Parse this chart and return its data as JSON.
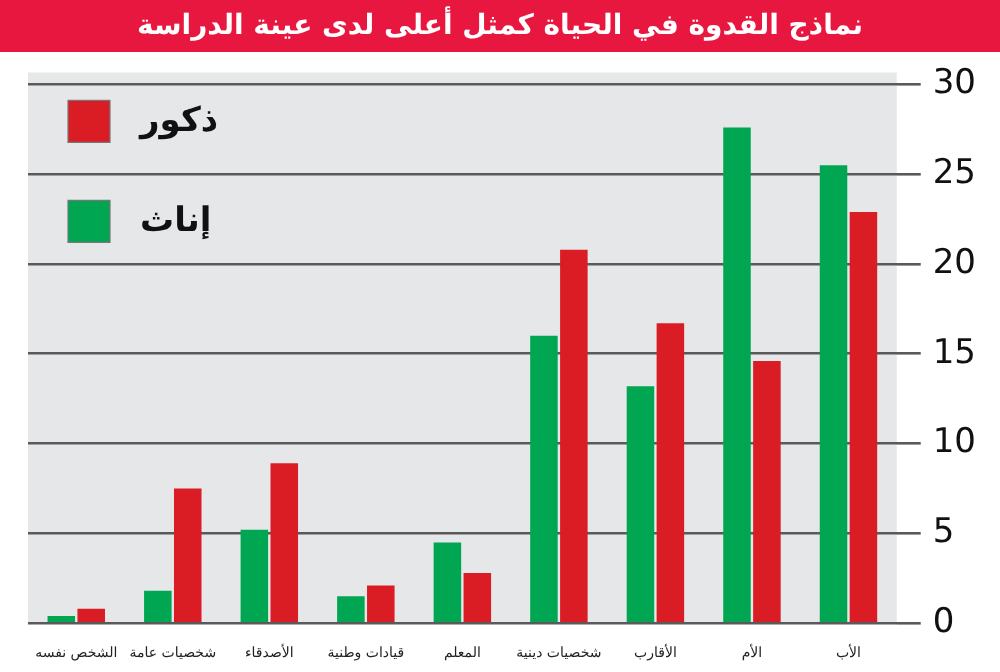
{
  "chart_data": {
    "type": "bar",
    "title": "نماذج القدوة في الحياة كمثل أعلى لدى عينة الدراسة",
    "categories": [
      "الشخص نفسه",
      "شخصيات عامة",
      "الأصدقاء",
      "قيادات وطنية",
      "المعلم",
      "شخصيات دينية",
      "الأقارب",
      "الأم",
      "الأب"
    ],
    "series": [
      {
        "name": "إناث",
        "color": "#00a651",
        "values": [
          0.4,
          1.8,
          5.2,
          1.5,
          4.5,
          16,
          13.2,
          27.6,
          25.5
        ]
      },
      {
        "name": "ذكور",
        "color": "#da1c24",
        "values": [
          0.8,
          7.5,
          8.9,
          2.1,
          2.8,
          20.8,
          16.7,
          14.6,
          22.9
        ]
      }
    ],
    "ylim": [
      0,
      30
    ],
    "yticks": [
      0,
      5,
      10,
      15,
      20,
      25,
      30
    ],
    "grid": "y",
    "legend": "top left"
  }
}
